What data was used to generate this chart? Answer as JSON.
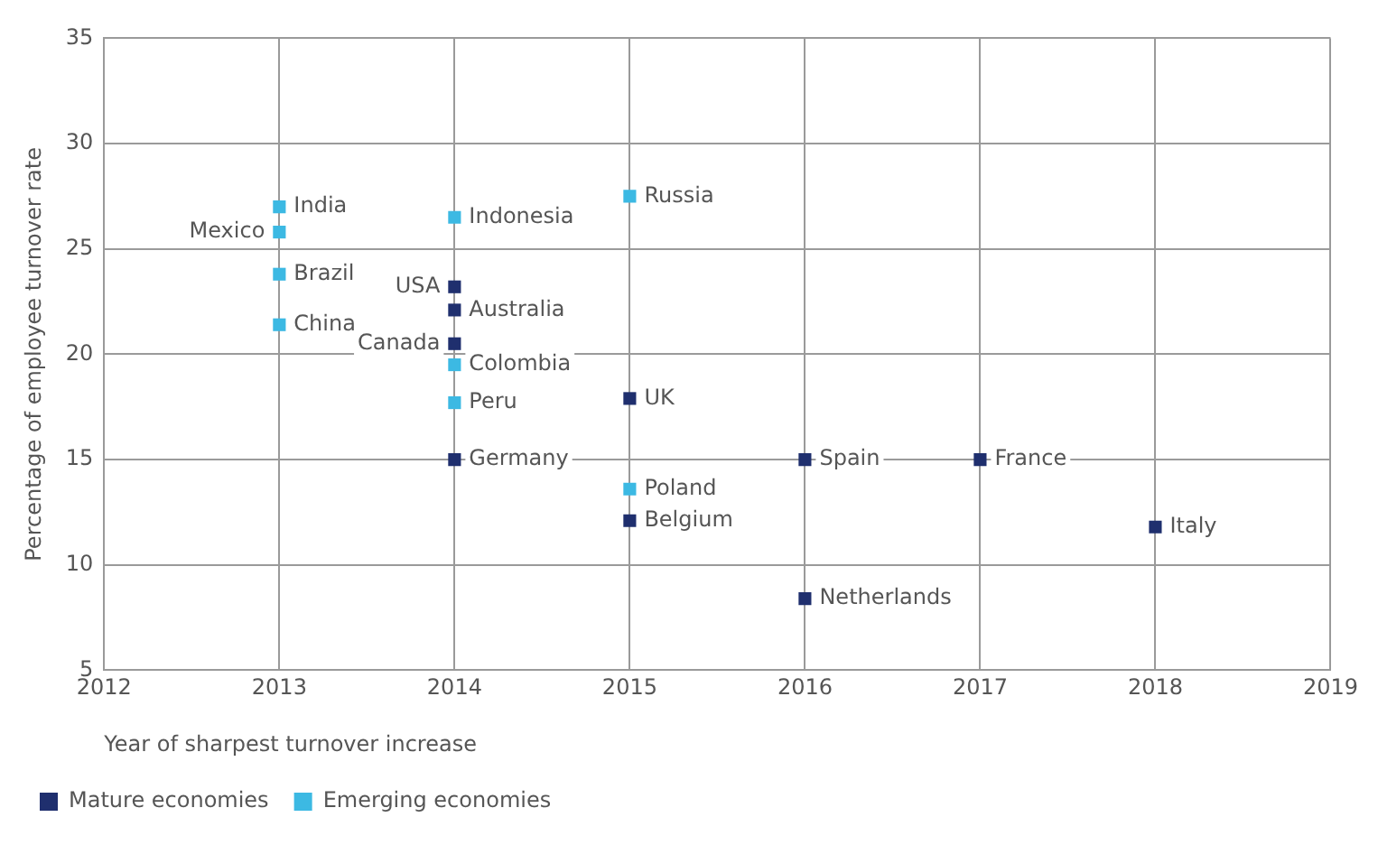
{
  "chart_data": {
    "type": "scatter",
    "xlabel": "Year of sharpest turnover increase",
    "ylabel": "Percentage of employee turnover rate",
    "xlim": [
      2012,
      2019
    ],
    "xticks": [
      2012,
      2013,
      2014,
      2015,
      2016,
      2017,
      2018,
      2019
    ],
    "ylim": [
      5,
      35
    ],
    "yticks": [
      5,
      10,
      15,
      20,
      25,
      30,
      35
    ],
    "grid": true,
    "legend": "bottom left",
    "marker": "square",
    "series": [
      {
        "name": "Mature economies",
        "color": "#1f2f6e",
        "x": [
          2014,
          2014,
          2014,
          2014,
          2015,
          2015,
          2016,
          2016,
          2017,
          2018
        ],
        "values": [
          23.2,
          22.1,
          20.5,
          15.0,
          17.9,
          12.1,
          15.0,
          8.4,
          15.0,
          11.8
        ]
      },
      {
        "name": "Emerging economies",
        "color": "#3cb9e3",
        "x": [
          2013,
          2013,
          2013,
          2013,
          2014,
          2014,
          2014,
          2015,
          2015
        ],
        "values": [
          27.0,
          25.8,
          23.8,
          21.4,
          26.5,
          19.5,
          17.7,
          27.5,
          13.6
        ]
      }
    ],
    "annotations": [
      {
        "text": "India",
        "x": 2013,
        "y": 27.0
      },
      {
        "text": "Brazil",
        "x": 2013,
        "y": 23.8
      },
      {
        "text": "Indonesia",
        "x": 2014,
        "y": 26.5
      },
      {
        "text": "Australia",
        "x": 2014,
        "y": 22.1
      },
      {
        "text": "Colombia",
        "x": 2014,
        "y": 19.5
      },
      {
        "text": "Germany",
        "x": 2014,
        "y": 15.0
      },
      {
        "text": "Russia",
        "x": 2015,
        "y": 27.5
      },
      {
        "text": "UK",
        "x": 2015,
        "y": 17.9
      },
      {
        "text": "Poland",
        "x": 2015,
        "y": 13.6
      },
      {
        "text": "Belgium",
        "x": 2015,
        "y": 12.1
      },
      {
        "text": "Spain",
        "x": 2016,
        "y": 15.0
      },
      {
        "text": "Netherlands",
        "x": 2016,
        "y": 8.4
      },
      {
        "text": "France",
        "x": 2017,
        "y": 15.0
      },
      {
        "text": "Italy",
        "x": 2018,
        "y": 11.8
      },
      {
        "text": "Mexico",
        "x": 2013,
        "y": 25.8
      },
      {
        "text": "China",
        "x": 2013,
        "y": 21.4
      },
      {
        "text": "USA",
        "x": 2014,
        "y": 23.2
      },
      {
        "text": "Canada",
        "x": 2014,
        "y": 20.5
      },
      {
        "text": "Peru",
        "x": 2014,
        "y": 17.7
      }
    ]
  }
}
